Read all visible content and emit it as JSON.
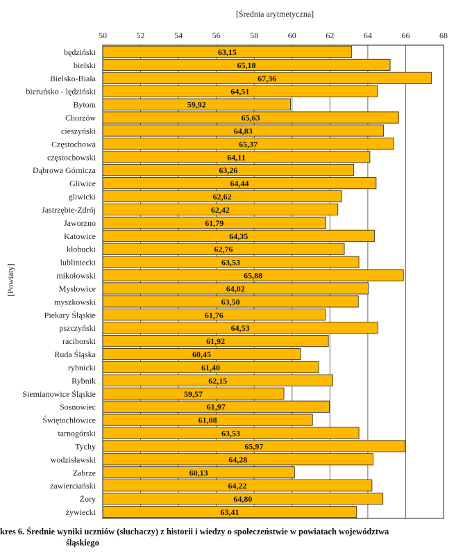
{
  "chart_data": {
    "type": "bar",
    "orientation": "horizontal",
    "title": "[Średnia arytmetyczna]",
    "xlabel": "[Średnia arytmetyczna]",
    "ylabel": "[Powiaty]",
    "xlim": [
      50,
      68
    ],
    "xticks": [
      50,
      52,
      54,
      56,
      58,
      60,
      62,
      64,
      66,
      68
    ],
    "grid": true,
    "categories": [
      "będziński",
      "bielski",
      "Bielsko-Biała",
      "bieruńsko - lędziński",
      "Bytom",
      "Chorzów",
      "cieszyński",
      "Częstochowa",
      "częstochowski",
      "Dąbrowa Górnicza",
      "Gliwice",
      "gliwicki",
      "Jastrzębie-Zdrój",
      "Jaworzno",
      "Katowice",
      "kłobucki",
      "lubliniecki",
      "mikołowski",
      "Mysłowice",
      "myszkowski",
      "Piekary Śląskie",
      "pszczyński",
      "raciborski",
      "Ruda Śląska",
      "rybnicki",
      "Rybnik",
      "Siemianowice Śląskie",
      "Sosnowiec",
      "Świętochłowice",
      "tarnogórski",
      "Tychy",
      "wodzisławski",
      "Zabrze",
      "zawierciański",
      "Żory",
      "żywiecki"
    ],
    "values": [
      63.15,
      65.18,
      67.36,
      64.51,
      59.92,
      65.63,
      64.83,
      65.37,
      64.11,
      63.26,
      64.44,
      62.62,
      62.42,
      61.79,
      64.35,
      62.76,
      63.53,
      65.88,
      64.02,
      63.5,
      61.76,
      64.53,
      61.92,
      60.45,
      61.4,
      62.15,
      59.57,
      61.97,
      61.08,
      63.53,
      65.97,
      64.28,
      60.13,
      64.22,
      64.8,
      63.41
    ],
    "value_labels": [
      "63,15",
      "65,18",
      "67,36",
      "64,51",
      "59,92",
      "65,63",
      "64,83",
      "65,37",
      "64,11",
      "63,26",
      "64,44",
      "62,62",
      "62,42",
      "61,79",
      "64,35",
      "62,76",
      "63,53",
      "65,88",
      "64,02",
      "63,50",
      "61,76",
      "64,53",
      "61,92",
      "60,45",
      "61,40",
      "62,15",
      "59,57",
      "61,97",
      "61,08",
      "63,53",
      "65,97",
      "64,28",
      "60,13",
      "64,22",
      "64,80",
      "63,41"
    ],
    "colors": {
      "bar": "#FFB800",
      "bar_stroke": "#222222",
      "grid": "#666666"
    }
  },
  "caption": {
    "line1": "kres 6. Średnie wyniki uczniów (słuchaczy) z historii i wiedzy o społeczeństwie w powiatach województwa",
    "line2": "śląskiego"
  }
}
